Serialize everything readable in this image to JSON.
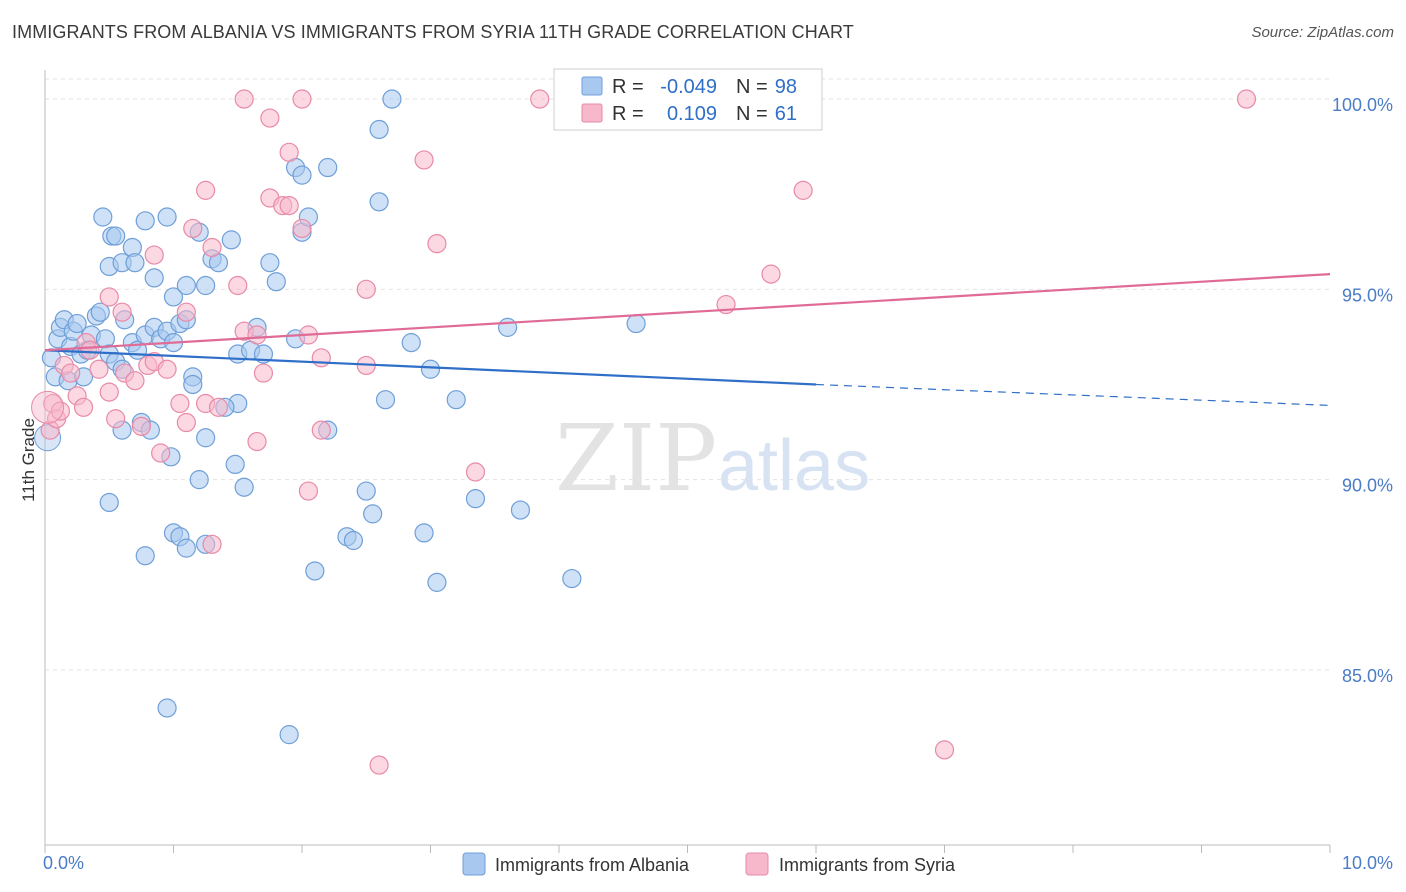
{
  "title": "IMMIGRANTS FROM ALBANIA VS IMMIGRANTS FROM SYRIA 11TH GRADE CORRELATION CHART",
  "source": "Source: ZipAtlas.com",
  "watermark": {
    "zip": "ZIP",
    "atlas": "atlas"
  },
  "colors": {
    "albania_fill": "#a8c8f0",
    "albania_stroke": "#6f9fd8",
    "albania_line": "#2f6fc8",
    "syria_fill": "#f7b8cb",
    "syria_stroke": "#e88aa8",
    "syria_line": "#e06b96",
    "value_text": "#2f6fc8",
    "grid": "#dddddd"
  },
  "legend": {
    "r_label": "R =",
    "n_label": "N =",
    "albania": {
      "r": "-0.049",
      "n": "98"
    },
    "syria": {
      "r": "0.109",
      "n": "61"
    }
  },
  "chart_data": {
    "type": "scatter",
    "title": "IMMIGRANTS FROM ALBANIA VS IMMIGRANTS FROM SYRIA 11TH GRADE CORRELATION CHART",
    "xlabel": "",
    "ylabel": "11th Grade",
    "xlim": [
      0,
      10
    ],
    "ylim": [
      80.5,
      101.0
    ],
    "x_tick_labels": [
      "0.0%",
      "10.0%"
    ],
    "y_ticks": [
      85,
      90,
      95,
      100
    ],
    "y_tick_labels": [
      "85.0%",
      "90.0%",
      "95.0%",
      "100.0%"
    ],
    "grid": true,
    "legend_placement": "bottom",
    "series": [
      {
        "name": "Immigrants from Albania",
        "r": -0.049,
        "n": 98,
        "trend": {
          "x0": 0,
          "y0": 93.4,
          "x1": 6.0,
          "y1": 92.5,
          "dash_to_x": 10.0,
          "dash_to_y": 91.95
        },
        "points": [
          [
            0.05,
            93.2
          ],
          [
            0.08,
            92.7
          ],
          [
            0.1,
            93.7
          ],
          [
            0.12,
            94.0
          ],
          [
            0.15,
            94.2
          ],
          [
            0.18,
            92.6
          ],
          [
            0.2,
            93.5
          ],
          [
            0.22,
            93.9
          ],
          [
            0.25,
            94.1
          ],
          [
            0.28,
            93.3
          ],
          [
            0.3,
            92.7
          ],
          [
            0.33,
            93.4
          ],
          [
            0.36,
            93.8
          ],
          [
            0.4,
            94.3
          ],
          [
            0.43,
            94.4
          ],
          [
            0.47,
            93.7
          ],
          [
            0.5,
            93.3
          ],
          [
            0.55,
            93.1
          ],
          [
            0.6,
            92.9
          ],
          [
            0.62,
            94.2
          ],
          [
            0.68,
            93.6
          ],
          [
            0.72,
            93.4
          ],
          [
            0.78,
            93.8
          ],
          [
            0.85,
            94.0
          ],
          [
            0.9,
            93.7
          ],
          [
            0.95,
            93.9
          ],
          [
            1.0,
            93.6
          ],
          [
            1.05,
            94.1
          ],
          [
            1.1,
            94.2
          ],
          [
            1.15,
            92.7
          ],
          [
            0.45,
            96.9
          ],
          [
            0.5,
            95.6
          ],
          [
            0.52,
            96.4
          ],
          [
            0.55,
            96.4
          ],
          [
            0.6,
            95.7
          ],
          [
            0.68,
            96.1
          ],
          [
            0.7,
            95.7
          ],
          [
            0.78,
            96.8
          ],
          [
            0.85,
            95.3
          ],
          [
            0.95,
            96.9
          ],
          [
            1.0,
            94.8
          ],
          [
            1.1,
            95.1
          ],
          [
            1.2,
            96.5
          ],
          [
            1.25,
            95.1
          ],
          [
            1.3,
            95.8
          ],
          [
            1.35,
            95.7
          ],
          [
            1.45,
            96.3
          ],
          [
            1.5,
            93.3
          ],
          [
            1.6,
            93.4
          ],
          [
            1.65,
            94.0
          ],
          [
            1.75,
            95.7
          ],
          [
            1.8,
            95.2
          ],
          [
            1.95,
            93.7
          ],
          [
            2.0,
            96.5
          ],
          [
            2.05,
            96.9
          ],
          [
            1.95,
            98.2
          ],
          [
            2.0,
            98.0
          ],
          [
            2.2,
            98.2
          ],
          [
            2.6,
            97.3
          ],
          [
            2.6,
            99.2
          ],
          [
            2.7,
            100.0
          ],
          [
            3.0,
            92.9
          ],
          [
            3.2,
            92.1
          ],
          [
            4.6,
            94.1
          ],
          [
            3.6,
            94.0
          ],
          [
            0.6,
            91.3
          ],
          [
            0.75,
            91.5
          ],
          [
            0.98,
            90.6
          ],
          [
            1.2,
            90.0
          ],
          [
            1.48,
            90.4
          ],
          [
            1.55,
            89.8
          ],
          [
            1.5,
            92.0
          ],
          [
            2.65,
            92.1
          ],
          [
            0.5,
            89.4
          ],
          [
            1.0,
            88.6
          ],
          [
            1.05,
            88.5
          ],
          [
            1.1,
            88.2
          ],
          [
            1.25,
            88.3
          ],
          [
            2.35,
            88.5
          ],
          [
            2.4,
            88.4
          ],
          [
            2.5,
            89.7
          ],
          [
            2.55,
            89.1
          ],
          [
            2.95,
            88.6
          ],
          [
            0.78,
            88.0
          ],
          [
            3.35,
            89.5
          ],
          [
            3.7,
            89.2
          ],
          [
            4.1,
            87.4
          ],
          [
            3.05,
            87.3
          ],
          [
            2.1,
            87.6
          ],
          [
            0.95,
            84.0
          ],
          [
            1.9,
            83.3
          ],
          [
            0.82,
            91.3
          ],
          [
            2.2,
            91.3
          ],
          [
            2.85,
            93.6
          ],
          [
            1.7,
            93.3
          ],
          [
            1.15,
            92.5
          ],
          [
            1.25,
            91.1
          ],
          [
            1.4,
            91.9
          ]
        ]
      },
      {
        "name": "Immigrants from Syria",
        "r": 0.109,
        "n": 61,
        "trend": {
          "x0": 0,
          "y0": 93.4,
          "x1": 10.0,
          "y1": 95.4
        },
        "points": [
          [
            0.04,
            91.3
          ],
          [
            0.06,
            92.0
          ],
          [
            0.09,
            91.6
          ],
          [
            0.12,
            91.8
          ],
          [
            0.15,
            93.0
          ],
          [
            0.2,
            92.8
          ],
          [
            0.25,
            92.2
          ],
          [
            0.3,
            91.9
          ],
          [
            0.32,
            93.6
          ],
          [
            0.35,
            93.4
          ],
          [
            0.42,
            92.9
          ],
          [
            0.5,
            92.3
          ],
          [
            0.55,
            91.6
          ],
          [
            0.62,
            92.8
          ],
          [
            0.7,
            92.6
          ],
          [
            0.75,
            91.4
          ],
          [
            0.8,
            93.0
          ],
          [
            0.85,
            93.1
          ],
          [
            0.95,
            92.9
          ],
          [
            1.05,
            92.0
          ],
          [
            1.1,
            91.5
          ],
          [
            1.25,
            92.0
          ],
          [
            1.35,
            91.9
          ],
          [
            1.55,
            93.9
          ],
          [
            1.65,
            93.8
          ],
          [
            1.7,
            92.8
          ],
          [
            2.05,
            93.8
          ],
          [
            2.15,
            93.2
          ],
          [
            2.5,
            93.0
          ],
          [
            0.5,
            94.8
          ],
          [
            0.6,
            94.4
          ],
          [
            0.85,
            95.9
          ],
          [
            1.1,
            94.4
          ],
          [
            1.15,
            96.6
          ],
          [
            1.3,
            96.1
          ],
          [
            1.25,
            97.6
          ],
          [
            1.5,
            95.1
          ],
          [
            1.75,
            97.4
          ],
          [
            1.85,
            97.2
          ],
          [
            1.9,
            97.2
          ],
          [
            1.9,
            98.6
          ],
          [
            2.0,
            96.6
          ],
          [
            2.5,
            95.0
          ],
          [
            2.95,
            98.4
          ],
          [
            3.05,
            96.2
          ],
          [
            1.55,
            100.0
          ],
          [
            1.75,
            99.5
          ],
          [
            2.0,
            100.0
          ],
          [
            3.85,
            100.0
          ],
          [
            5.3,
            94.6
          ],
          [
            5.65,
            95.4
          ],
          [
            5.9,
            97.6
          ],
          [
            9.35,
            100.0
          ],
          [
            0.9,
            90.7
          ],
          [
            1.65,
            91.0
          ],
          [
            2.05,
            89.7
          ],
          [
            2.15,
            91.3
          ],
          [
            3.35,
            90.2
          ],
          [
            1.3,
            88.3
          ],
          [
            7.0,
            82.9
          ],
          [
            2.6,
            82.5
          ]
        ]
      }
    ]
  },
  "bottom_legend": {
    "albania_label": "Immigrants from Albania",
    "syria_label": "Immigrants from Syria"
  }
}
